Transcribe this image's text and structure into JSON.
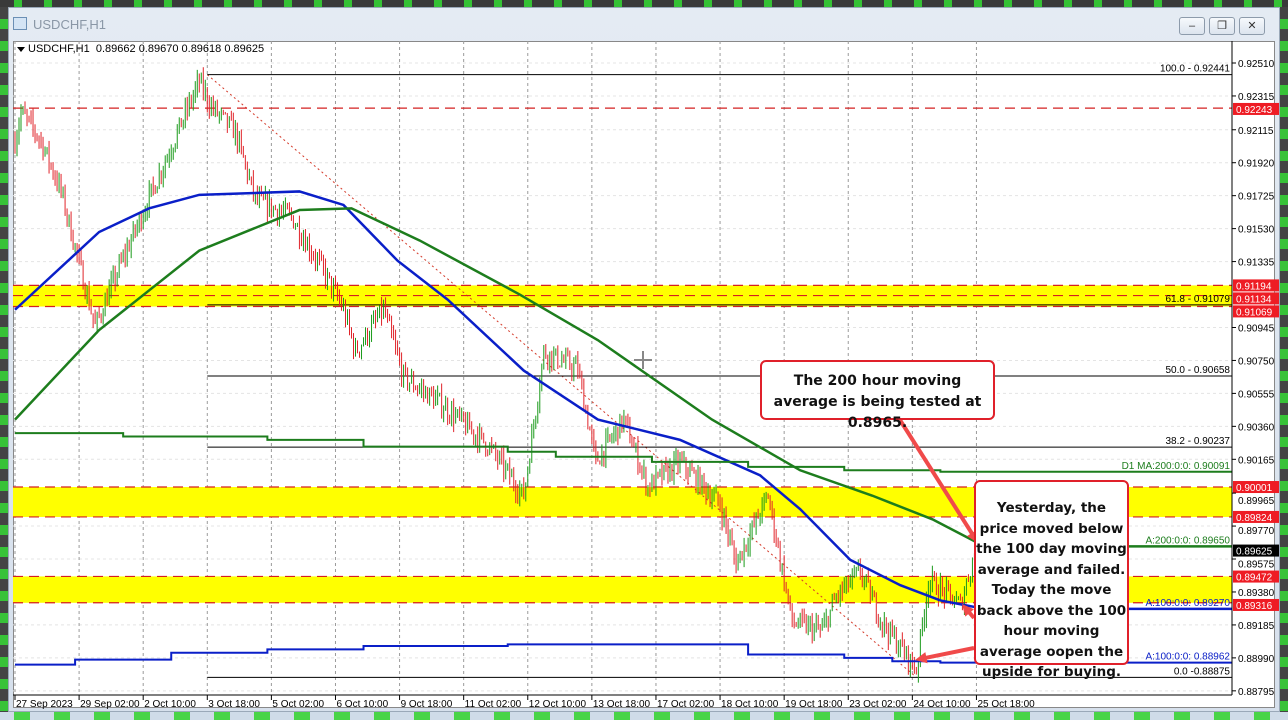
{
  "window": {
    "title": "USDCHF,H1",
    "buttons": [
      {
        "icon": "minimize-icon",
        "glyph": "–"
      },
      {
        "icon": "restore-icon",
        "glyph": "❐"
      },
      {
        "icon": "close-icon",
        "glyph": "✕"
      }
    ]
  },
  "chart_header": {
    "symbol": "USDCHF,H1",
    "open": "0.89662",
    "high": "0.89670",
    "low": "0.89618",
    "close": "0.89625"
  },
  "annotations": {
    "box1": "The 200 hour moving average is being tested at 0.8965.",
    "box2": "Yesterday, the price moved below the 100 day moving average and failed. Today the  move back above the 100 hour moving average oopen the upside for buying."
  },
  "chart_data": {
    "type": "ohlc-bar",
    "symbol": "USDCHF",
    "timeframe": "H1",
    "colors": {
      "up": "#1a9a1a",
      "down": "#e0242a",
      "ma100": "#0a1fc8",
      "ma200": "#1d7d1d",
      "level": "#d42020",
      "zone": "#ffff00"
    },
    "ylim": [
      0.8875,
      0.9262
    ],
    "y_ticks": [
      "0.92510",
      "0.92315",
      "0.92115",
      "0.91920",
      "0.91725",
      "0.91530",
      "0.91335",
      "0.90945",
      "0.90750",
      "0.90555",
      "0.90360",
      "0.90165",
      "0.89965",
      "0.89770",
      "0.89575",
      "0.89380",
      "0.89185",
      "0.88990",
      "0.88795"
    ],
    "x_ticks": [
      {
        "label": "27 Sep 2023",
        "time": "2023-09-27T18:00"
      },
      {
        "label": "29 Sep 02:00",
        "time": "2023-09-29T02:00"
      },
      {
        "label": "2 Oct 10:00",
        "time": "2023-10-02T10:00"
      },
      {
        "label": "3 Oct 18:00",
        "time": "2023-10-03T18:00"
      },
      {
        "label": "5 Oct 02:00",
        "time": "2023-10-05T02:00"
      },
      {
        "label": "6 Oct 10:00",
        "time": "2023-10-06T10:00"
      },
      {
        "label": "9 Oct 18:00",
        "time": "2023-10-09T18:00"
      },
      {
        "label": "11 Oct 02:00",
        "time": "2023-10-11T02:00"
      },
      {
        "label": "12 Oct 10:00",
        "time": "2023-10-12T10:00"
      },
      {
        "label": "13 Oct 18:00",
        "time": "2023-10-13T18:00"
      },
      {
        "label": "17 Oct 02:00",
        "time": "2023-10-17T02:00"
      },
      {
        "label": "18 Oct 10:00",
        "time": "2023-10-18T10:00"
      },
      {
        "label": "19 Oct 18:00",
        "time": "2023-10-19T18:00"
      },
      {
        "label": "23 Oct 02:00",
        "time": "2023-10-23T02:00"
      },
      {
        "label": "24 Oct 10:00",
        "time": "2023-10-24T10:00"
      },
      {
        "label": "25 Oct 18:00",
        "time": "2023-10-25T18:00"
      }
    ],
    "price_path": [
      [
        "2023-09-27T18:00",
        0.9205
      ],
      [
        "2023-09-27T21:00",
        0.9222
      ],
      [
        "2023-09-28T07:00",
        0.9205
      ],
      [
        "2023-09-28T17:00",
        0.9175
      ],
      [
        "2023-09-29T10:00",
        0.9095
      ],
      [
        "2023-09-29T22:00",
        0.913
      ],
      [
        "2023-10-02T18:00",
        0.9185
      ],
      [
        "2023-10-03T14:00",
        0.924
      ],
      [
        "2023-10-03T20:00",
        0.9225
      ],
      [
        "2023-10-04T08:00",
        0.921
      ],
      [
        "2023-10-04T18:00",
        0.917
      ],
      [
        "2023-10-05T12:00",
        0.916
      ],
      [
        "2023-10-06T03:00",
        0.913
      ],
      [
        "2023-10-06T14:00",
        0.9105
      ],
      [
        "2023-10-06T20:00",
        0.908
      ],
      [
        "2023-10-09T10:00",
        0.9105
      ],
      [
        "2023-10-09T20:00",
        0.9065
      ],
      [
        "2023-10-10T14:00",
        0.905
      ],
      [
        "2023-10-11T14:00",
        0.9025
      ],
      [
        "2023-10-12T08:00",
        0.8995
      ],
      [
        "2023-10-12T18:00",
        0.908
      ],
      [
        "2023-10-13T11:00",
        0.907
      ],
      [
        "2023-10-13T20:00",
        0.9015
      ],
      [
        "2023-10-16T10:00",
        0.904
      ],
      [
        "2023-10-16T22:00",
        0.9
      ],
      [
        "2023-10-17T14:00",
        0.9015
      ],
      [
        "2023-10-18T10:00",
        0.899
      ],
      [
        "2023-10-18T18:00",
        0.8955
      ],
      [
        "2023-10-19T10:00",
        0.8995
      ],
      [
        "2023-10-19T22:00",
        0.892
      ],
      [
        "2023-10-20T13:00",
        0.8915
      ],
      [
        "2023-10-20T20:00",
        0.8935
      ],
      [
        "2023-10-23T08:00",
        0.895
      ],
      [
        "2023-10-23T19:00",
        0.892
      ],
      [
        "2023-10-24T12:00",
        0.8892
      ],
      [
        "2023-10-24T18:00",
        0.8945
      ],
      [
        "2023-10-25T10:00",
        0.893
      ],
      [
        "2023-10-25T18:00",
        0.8965
      ],
      [
        "2023-10-25T23:00",
        0.89625
      ]
    ],
    "current_price": "0.89625",
    "moving_averages": [
      {
        "name": "H1 MA 100",
        "label": "A:100:0:0: 0.89270",
        "color": "#0a1fc8",
        "points": [
          [
            "2023-09-27T18:00",
            0.9105
          ],
          [
            "2023-09-29T12:00",
            0.9151
          ],
          [
            "2023-10-02T13:00",
            0.9165
          ],
          [
            "2023-10-03T14:00",
            0.9173
          ],
          [
            "2023-10-05T16:00",
            0.9175
          ],
          [
            "2023-10-06T14:00",
            0.9167
          ],
          [
            "2023-10-09T17:00",
            0.9134
          ],
          [
            "2023-10-10T18:00",
            0.9111
          ],
          [
            "2023-10-12T08:00",
            0.9069
          ],
          [
            "2023-10-13T21:00",
            0.904
          ],
          [
            "2023-10-17T14:00",
            0.9028
          ],
          [
            "2023-10-19T06:00",
            0.9007
          ],
          [
            "2023-10-20T02:00",
            0.8987
          ],
          [
            "2023-10-23T03:00",
            0.8957
          ],
          [
            "2023-10-24T04:00",
            0.8942
          ],
          [
            "2023-10-25T00:00",
            0.8933
          ],
          [
            "2023-10-25T22:00",
            0.8928
          ]
        ]
      },
      {
        "name": "H1 MA 200",
        "label": "A:200:0:0: 0.89650",
        "color": "#1d7d1d",
        "points": [
          [
            "2023-09-27T18:00",
            0.904
          ],
          [
            "2023-09-29T12:00",
            0.9093
          ],
          [
            "2023-10-03T14:00",
            0.914
          ],
          [
            "2023-10-05T16:00",
            0.9164
          ],
          [
            "2023-10-06T18:00",
            0.9165
          ],
          [
            "2023-10-10T04:00",
            0.9146
          ],
          [
            "2023-10-12T06:00",
            0.9114
          ],
          [
            "2023-10-13T21:00",
            0.9087
          ],
          [
            "2023-10-18T06:00",
            0.904
          ],
          [
            "2023-10-20T02:00",
            0.901
          ],
          [
            "2023-10-23T14:00",
            0.8995
          ],
          [
            "2023-10-24T20:00",
            0.8981
          ],
          [
            "2023-10-25T22:00",
            0.8965
          ]
        ]
      },
      {
        "name": "D1 MA 200",
        "label": "D1 MA:200:0:0: 0.90091",
        "color": "#1d7d1d",
        "step": true,
        "points": [
          [
            "2023-09-27T18:00",
            0.9032
          ],
          [
            "2023-10-02T00:00",
            0.903
          ],
          [
            "2023-10-05T00:00",
            0.9028
          ],
          [
            "2023-10-09T00:00",
            0.9024
          ],
          [
            "2023-10-12T00:00",
            0.9021
          ],
          [
            "2023-10-13T00:00",
            0.9018
          ],
          [
            "2023-10-17T00:00",
            0.9015
          ],
          [
            "2023-10-19T00:00",
            0.9012
          ],
          [
            "2023-10-23T00:00",
            0.901
          ],
          [
            "2023-10-25T00:00",
            0.90091
          ]
        ]
      },
      {
        "name": "D1 MA 100",
        "label": "A:100:0:0: 0.88962",
        "color": "#0a1fc8",
        "step": true,
        "points": [
          [
            "2023-09-27T18:00",
            0.8895
          ],
          [
            "2023-09-29T00:00",
            0.8898
          ],
          [
            "2023-10-03T00:00",
            0.8902
          ],
          [
            "2023-10-05T00:00",
            0.8904
          ],
          [
            "2023-10-09T00:00",
            0.8906
          ],
          [
            "2023-10-12T00:00",
            0.8907
          ],
          [
            "2023-10-19T00:00",
            0.8901
          ],
          [
            "2023-10-23T00:00",
            0.8899
          ],
          [
            "2023-10-24T00:00",
            0.8897
          ],
          [
            "2023-10-25T00:00",
            0.88962
          ]
        ]
      }
    ],
    "horizontal_levels": [
      "0.92243",
      "0.91194",
      "0.91134",
      "0.91069",
      "0.90001",
      "0.89824",
      "0.89472",
      "0.89316"
    ],
    "zones": [
      [
        0.91069,
        0.91194
      ],
      [
        0.89824,
        0.90001
      ],
      [
        0.89316,
        0.89472
      ]
    ],
    "fibonacci": {
      "from": [
        "2023-10-03T18:00",
        0.92441
      ],
      "to": [
        "2023-10-24T12:00",
        0.88875
      ],
      "levels": [
        {
          "label": "100.0 - 0.92441",
          "price": 0.92441
        },
        {
          "label": "61.8 - 0.91079",
          "price": 0.91079
        },
        {
          "label": "50.0 - 0.90658",
          "price": 0.90658
        },
        {
          "label": "38.2 - 0.90237",
          "price": 0.90237
        },
        {
          "label": "0.0 -0.88875",
          "price": 0.88875
        }
      ]
    }
  }
}
